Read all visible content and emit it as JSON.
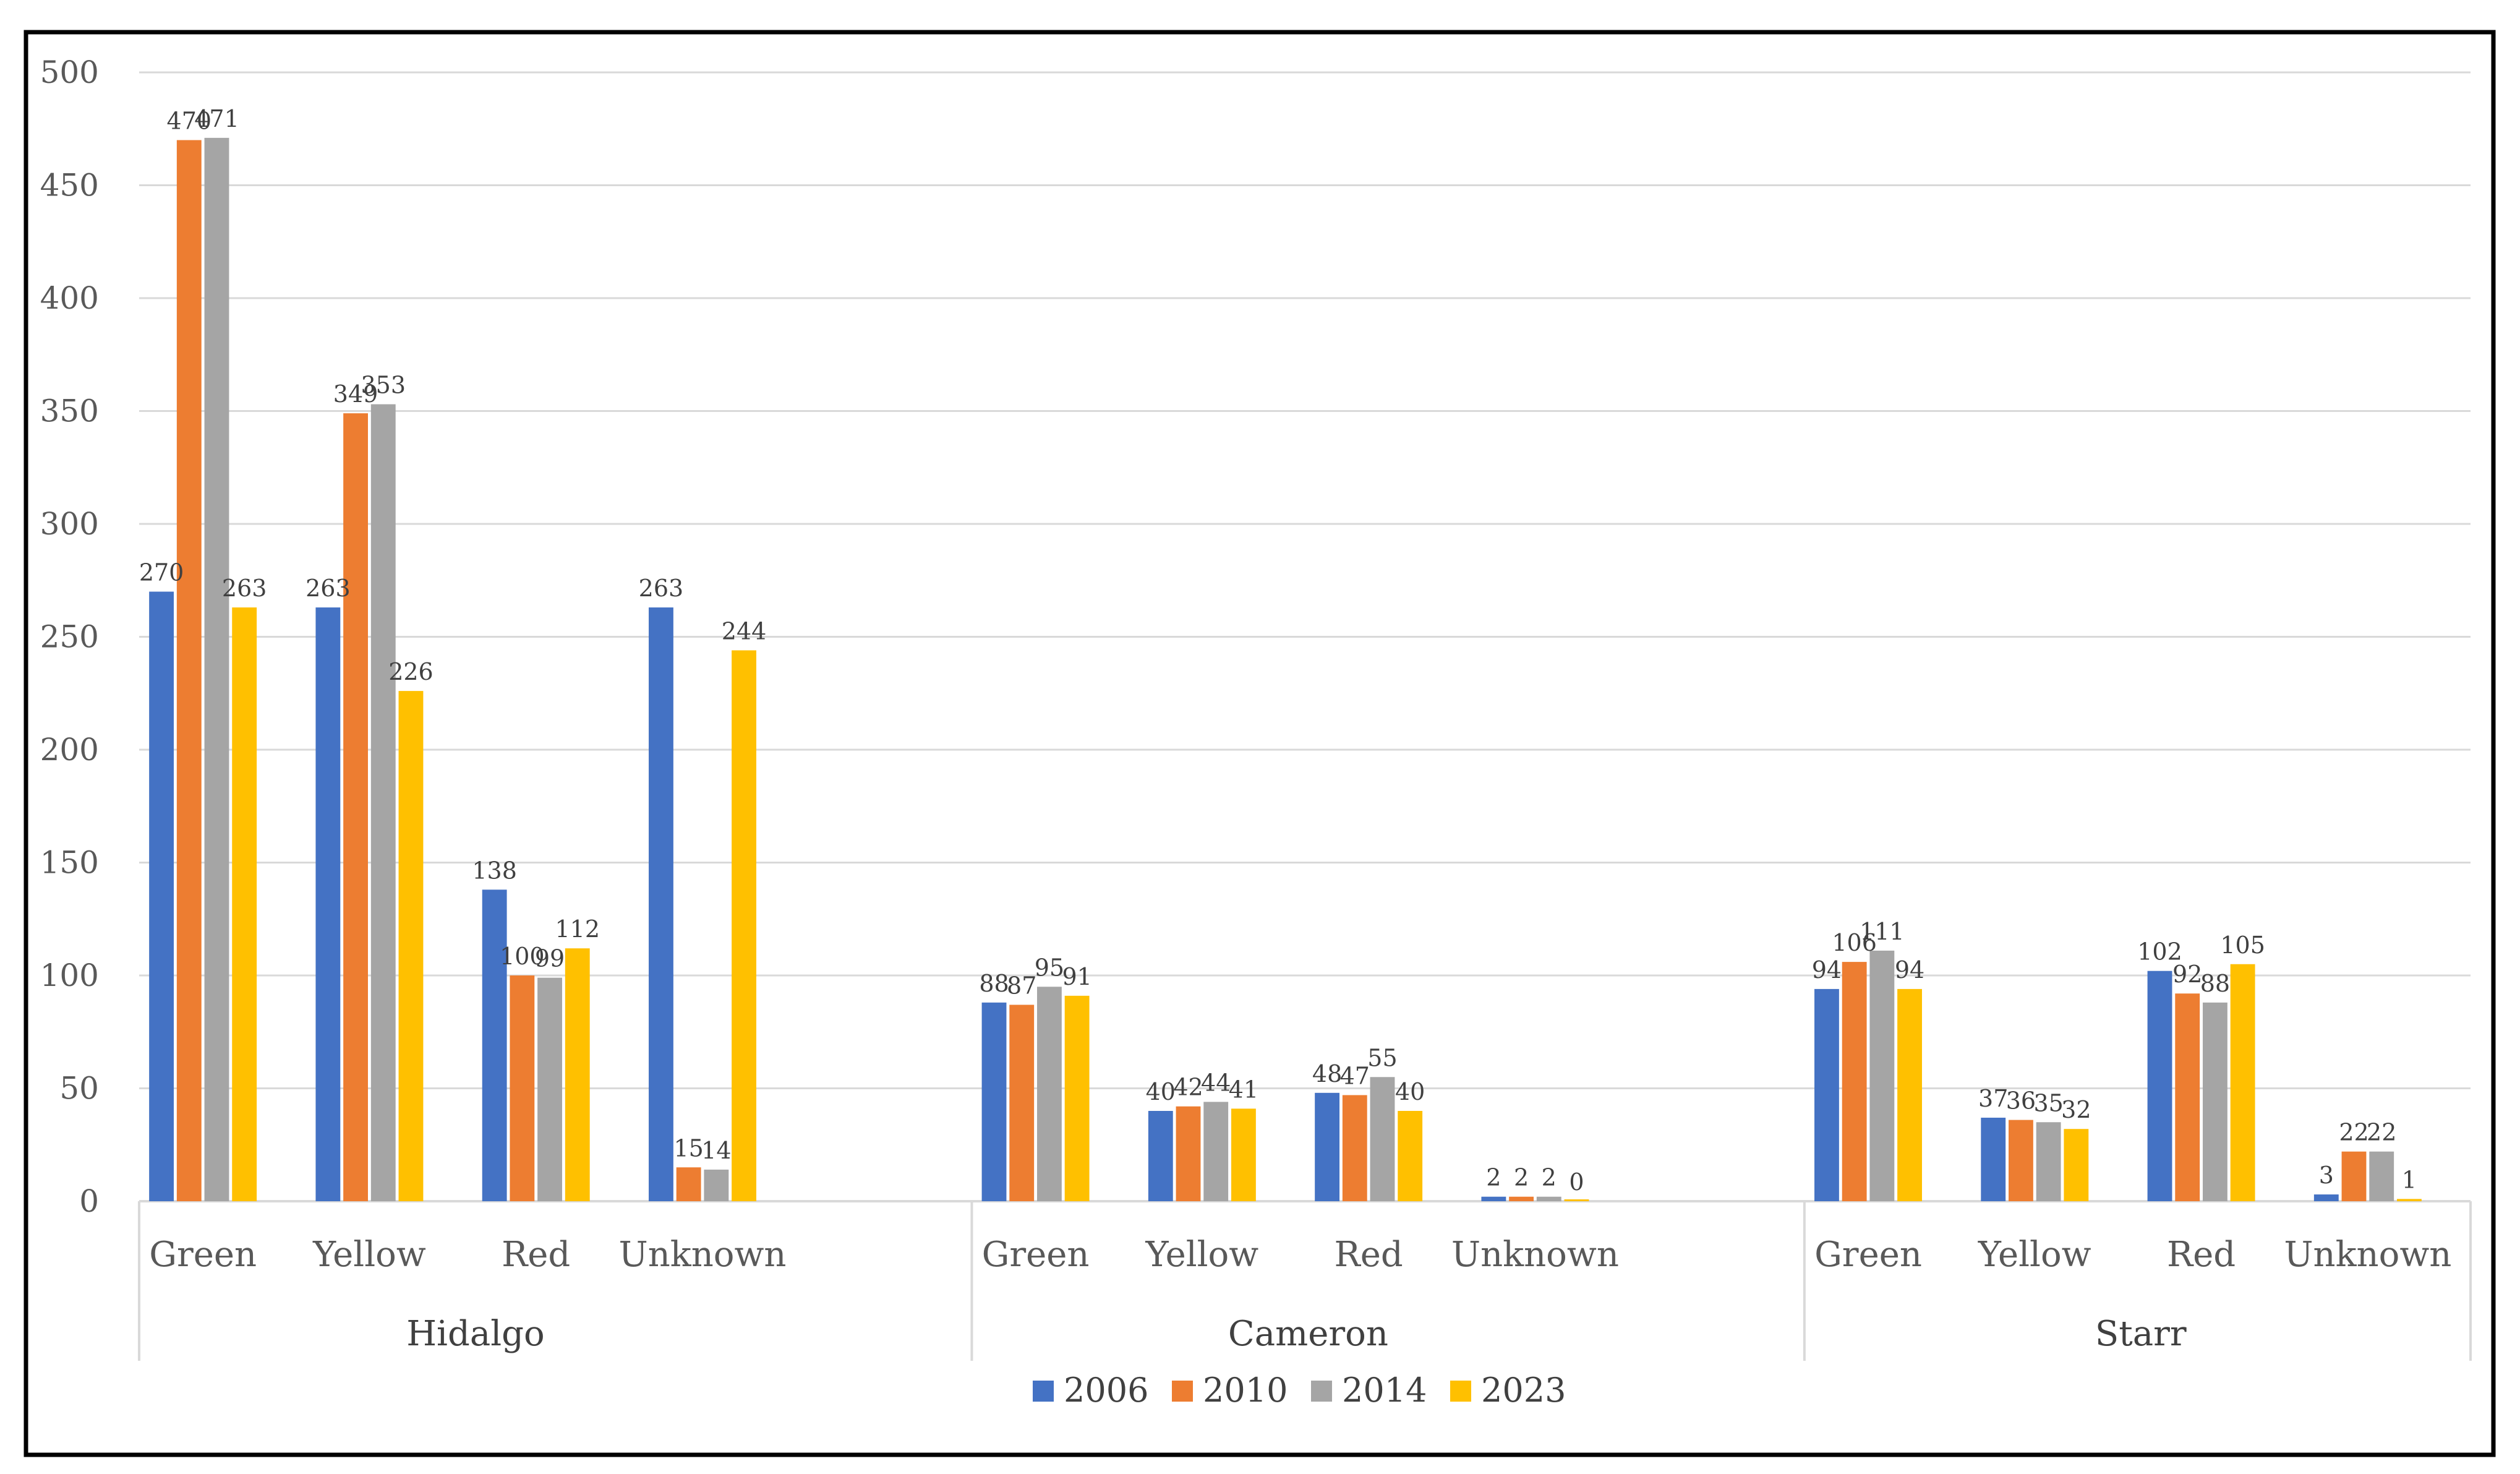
{
  "chart_data": {
    "type": "bar",
    "title": "",
    "xlabel": "",
    "ylabel": "",
    "ylim": [
      0,
      500
    ],
    "yticks": [
      0,
      50,
      100,
      150,
      200,
      250,
      300,
      350,
      400,
      450,
      500
    ],
    "grid": true,
    "legend_position": "bottom-center",
    "groups": [
      {
        "name": "Hidalgo",
        "categories": [
          "Green",
          "Yellow",
          "Red",
          "Unknown"
        ]
      },
      {
        "name": "Cameron",
        "categories": [
          "Green",
          "Yellow",
          "Red",
          "Unknown"
        ]
      },
      {
        "name": "Starr",
        "categories": [
          "Green",
          "Yellow",
          "Red",
          "Unknown"
        ]
      }
    ],
    "series": [
      {
        "name": "2006",
        "color": "#4472c4",
        "values": [
          270,
          263,
          138,
          263,
          88,
          40,
          48,
          2,
          94,
          37,
          102,
          3
        ]
      },
      {
        "name": "2010",
        "color": "#ed7d31",
        "values": [
          470,
          349,
          100,
          15,
          87,
          42,
          47,
          2,
          106,
          36,
          92,
          22
        ]
      },
      {
        "name": "2014",
        "color": "#a5a5a5",
        "values": [
          471,
          353,
          99,
          14,
          95,
          44,
          55,
          2,
          111,
          35,
          88,
          22
        ]
      },
      {
        "name": "2023",
        "color": "#ffc000",
        "values": [
          263,
          226,
          112,
          244,
          91,
          41,
          40,
          0,
          94,
          32,
          105,
          1
        ]
      }
    ]
  }
}
